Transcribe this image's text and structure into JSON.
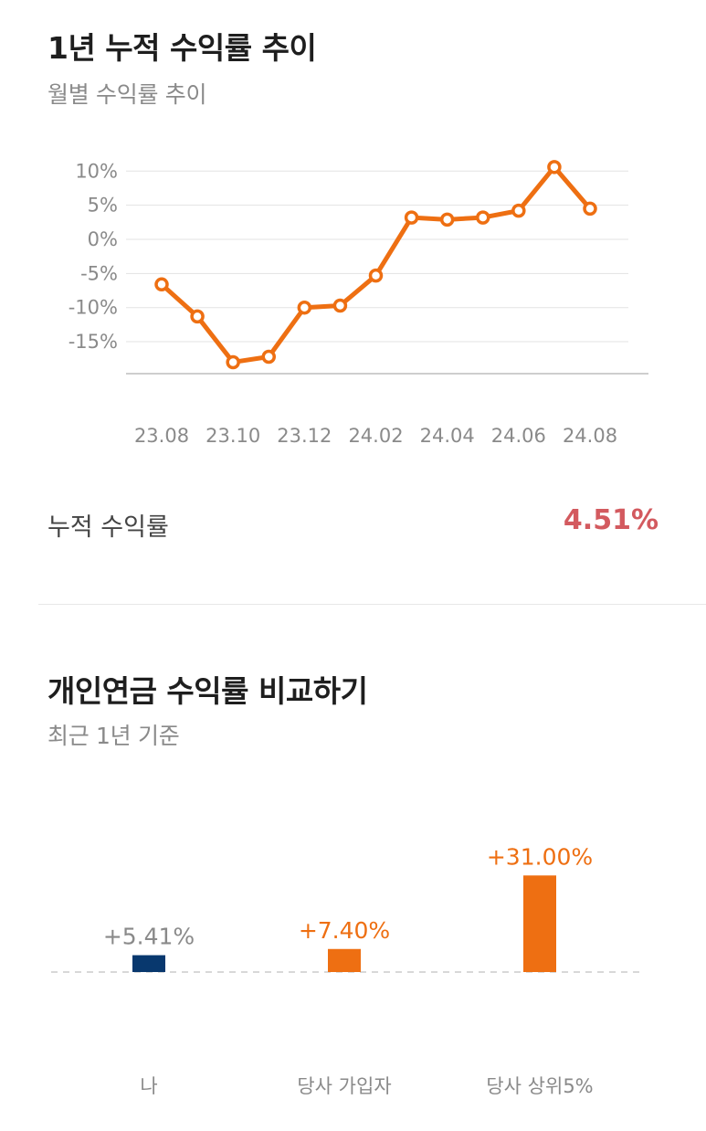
{
  "section1": {
    "title": "1년 누적 수익률 추이",
    "subtitle": "월별 수익률 추이",
    "summary_label": "누적 수익률",
    "summary_value": "4.51%"
  },
  "section2": {
    "title": "개인연금 수익률 비교하기",
    "subtitle": "최근 1년 기준"
  },
  "colors": {
    "line": "#ee6f12",
    "bar_me": "#08386e",
    "bar_other": "#ee6f12",
    "value_highlight": "#d35a5f"
  },
  "chart_data": [
    {
      "type": "line",
      "x": [
        "23.08",
        "23.09",
        "23.10",
        "23.11",
        "23.12",
        "24.01",
        "24.02",
        "24.03",
        "24.04",
        "24.05",
        "24.06",
        "24.07",
        "24.08"
      ],
      "x_tick_labels": [
        "23.08",
        "23.10",
        "23.12",
        "24.02",
        "24.04",
        "24.06",
        "24.08"
      ],
      "y": [
        -6.6,
        -11.3,
        -18.0,
        -17.2,
        -10.0,
        -9.7,
        -5.3,
        3.2,
        2.9,
        3.2,
        4.2,
        10.6,
        4.5
      ],
      "y_tick_labels": [
        "10%",
        "5%",
        "0%",
        "-5%",
        "-10%",
        "-15%"
      ],
      "y_ticks": [
        10,
        5,
        0,
        -5,
        -10,
        -15
      ],
      "ylim": [
        -20,
        10
      ],
      "grid": true
    },
    {
      "type": "bar",
      "categories": [
        "나",
        "당사 가입자",
        "당사 상위5%"
      ],
      "values": [
        5.41,
        7.4,
        31.0
      ],
      "value_labels": [
        "+5.41%",
        "+7.40%",
        "+31.00%"
      ]
    }
  ]
}
